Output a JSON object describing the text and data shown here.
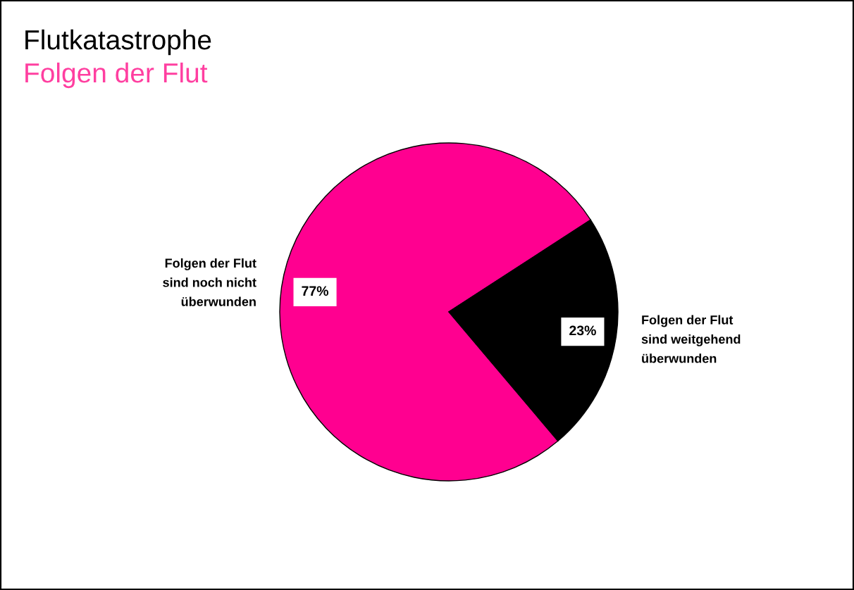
{
  "chart_data": {
    "type": "pie",
    "title": "Flutkatastrophe",
    "subtitle": "Folgen der Flut",
    "categories": [
      "Folgen der Flut\nsind noch nicht\nüberwunden",
      "Folgen der Flut\nsind weitgehend\nüberwunden"
    ],
    "values": [
      77,
      23
    ],
    "colors": [
      "#ff0090",
      "#000000"
    ],
    "value_labels": [
      "77%",
      "23%"
    ],
    "legend": false
  }
}
